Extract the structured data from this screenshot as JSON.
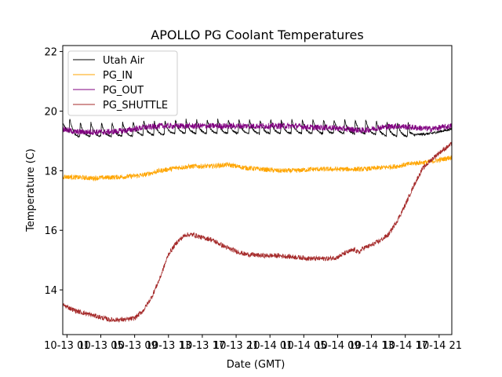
{
  "chart_data": {
    "type": "line",
    "title": "APOLLO PG Coolant Temperatures",
    "xlabel": "Date (GMT)",
    "ylabel": "Temperature (C)",
    "xlim_hours": [
      0.5,
      46.5
    ],
    "ylim": [
      12.5,
      22.2
    ],
    "y_ticks": [
      14,
      16,
      18,
      20,
      22
    ],
    "x_ticks": [
      {
        "hour": 1,
        "label": "10-13 01"
      },
      {
        "hour": 5,
        "label": "10-13 05"
      },
      {
        "hour": 9,
        "label": "10-13 09"
      },
      {
        "hour": 13,
        "label": "10-13 13"
      },
      {
        "hour": 17,
        "label": "10-13 17"
      },
      {
        "hour": 21,
        "label": "10-13 21"
      },
      {
        "hour": 25,
        "label": "10-14 01"
      },
      {
        "hour": 29,
        "label": "10-14 05"
      },
      {
        "hour": 33,
        "label": "10-14 09"
      },
      {
        "hour": 37,
        "label": "10-14 13"
      },
      {
        "hour": 41,
        "label": "10-14 17"
      },
      {
        "hour": 45,
        "label": "10-14 21"
      }
    ],
    "grid": false,
    "legend_position": "top-left",
    "x_hours_note": "hours since 10-13 00:00 GMT",
    "series": [
      {
        "name": "Utah Air",
        "color": "#000000",
        "x": [
          0.5,
          2,
          4,
          6,
          8,
          10,
          12,
          14,
          16,
          18,
          20,
          22,
          24,
          26,
          28,
          30,
          32,
          34,
          36,
          38,
          40,
          41.5,
          42,
          44,
          46.5
        ],
        "y": [
          19.6,
          19.3,
          19.3,
          19.3,
          19.3,
          19.35,
          19.35,
          19.4,
          19.4,
          19.4,
          19.4,
          19.4,
          19.4,
          19.4,
          19.4,
          19.4,
          19.4,
          19.4,
          19.4,
          19.35,
          19.3,
          19.3,
          19.2,
          19.25,
          19.4
        ],
        "oscillation": {
          "amplitude": 0.5,
          "period_hours": 1.25,
          "until_hour": 41.5
        }
      },
      {
        "name": "PG_IN",
        "color": "#FFA500",
        "x": [
          0.5,
          4,
          8,
          10,
          12,
          14,
          16,
          18,
          20,
          22,
          24,
          26,
          28,
          30,
          32,
          34,
          36,
          38,
          40,
          42,
          44,
          46.5
        ],
        "y": [
          17.8,
          17.75,
          17.8,
          17.85,
          18.0,
          18.1,
          18.15,
          18.15,
          18.2,
          18.1,
          18.05,
          18.0,
          18.0,
          18.05,
          18.05,
          18.05,
          18.05,
          18.1,
          18.15,
          18.25,
          18.3,
          18.45
        ],
        "noise": 0.08
      },
      {
        "name": "PG_OUT",
        "color": "#800080",
        "x": [
          0.5,
          2,
          4,
          6,
          8,
          10,
          12,
          14,
          16,
          18,
          20,
          22,
          24,
          26,
          28,
          30,
          32,
          34,
          36,
          38,
          40,
          42,
          44,
          46.5
        ],
        "y": [
          19.4,
          19.3,
          19.3,
          19.3,
          19.35,
          19.45,
          19.5,
          19.5,
          19.5,
          19.5,
          19.5,
          19.5,
          19.5,
          19.5,
          19.5,
          19.45,
          19.45,
          19.4,
          19.35,
          19.45,
          19.5,
          19.45,
          19.4,
          19.5
        ],
        "noise": 0.1
      },
      {
        "name": "PG_SHUTTLE",
        "color": "#A52A2A",
        "x": [
          0.5,
          2,
          4,
          6,
          8,
          9,
          10,
          11,
          12,
          13,
          14,
          15,
          16,
          17,
          18,
          19,
          20,
          22,
          24,
          26,
          28,
          30,
          32,
          33,
          34,
          35,
          35.5,
          36,
          37,
          38,
          39,
          40,
          41,
          42,
          43,
          44,
          45,
          46.5
        ],
        "y": [
          13.5,
          13.3,
          13.15,
          13.0,
          13.0,
          13.05,
          13.3,
          13.75,
          14.4,
          15.2,
          15.6,
          15.85,
          15.85,
          15.75,
          15.7,
          15.55,
          15.4,
          15.2,
          15.15,
          15.15,
          15.1,
          15.05,
          15.05,
          15.1,
          15.25,
          15.35,
          15.25,
          15.4,
          15.5,
          15.65,
          15.85,
          16.3,
          16.85,
          17.5,
          18.05,
          18.35,
          18.6,
          18.9
        ],
        "noise": 0.08
      }
    ]
  }
}
